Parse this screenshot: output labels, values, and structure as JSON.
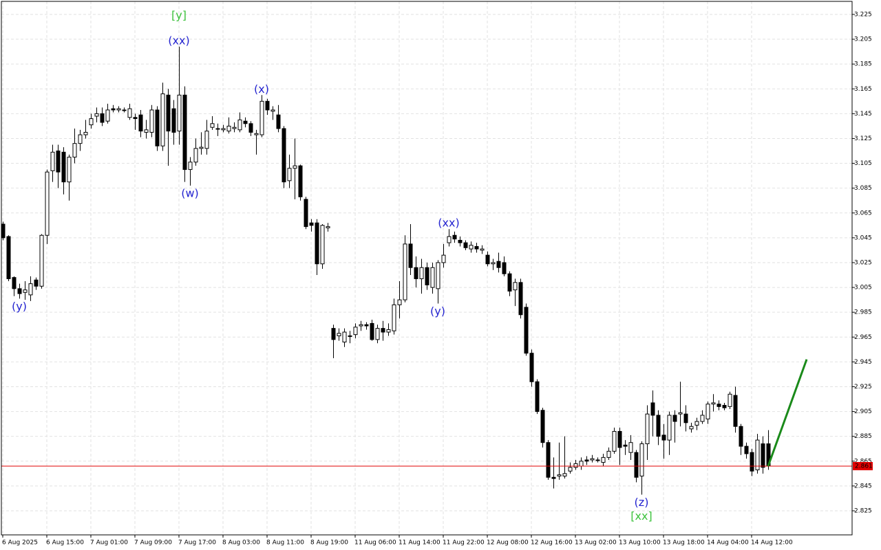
{
  "chart_data": {
    "type": "candlestick",
    "ylim": [
      2.8056,
      3.2355
    ],
    "yticks": [
      3.225,
      3.205,
      3.185,
      3.165,
      3.145,
      3.125,
      3.105,
      3.085,
      3.065,
      3.045,
      3.025,
      3.005,
      2.985,
      2.965,
      2.945,
      2.925,
      2.905,
      2.885,
      2.865,
      2.845,
      2.825
    ],
    "xlim": [
      -0.25,
      154.25
    ],
    "xticks": [
      {
        "value": 0,
        "label": "6 Aug 2025"
      },
      {
        "value": 8,
        "label": "6 Aug 15:00"
      },
      {
        "value": 16,
        "label": "7 Aug 01:00"
      },
      {
        "value": 24,
        "label": "7 Aug 09:00"
      },
      {
        "value": 32,
        "label": "7 Aug 17:00"
      },
      {
        "value": 40,
        "label": "8 Aug 03:00"
      },
      {
        "value": 48,
        "label": "8 Aug 11:00"
      },
      {
        "value": 56,
        "label": "8 Aug 19:00"
      },
      {
        "value": 64,
        "label": "11 Aug 06:00"
      },
      {
        "value": 72,
        "label": "11 Aug 14:00"
      },
      {
        "value": 80,
        "label": "11 Aug 22:00"
      },
      {
        "value": 88,
        "label": "12 Aug 08:00"
      },
      {
        "value": 96,
        "label": "12 Aug 16:00"
      },
      {
        "value": 104,
        "label": "13 Aug 02:00"
      },
      {
        "value": 112,
        "label": "13 Aug 10:00"
      },
      {
        "value": 120,
        "label": "13 Aug 18:00"
      },
      {
        "value": 128,
        "label": "14 Aug 04:00"
      },
      {
        "value": 136,
        "label": "14 Aug 12:00"
      }
    ],
    "grid": true,
    "bull_color": "#ffffff",
    "bear_color": "#000000",
    "open": [
      3.056,
      3.046,
      3.013,
      3.004,
      3.001,
      2.999,
      3.011,
      3.006,
      3.047,
      3.099,
      3.115,
      3.114,
      3.09,
      3.11,
      3.121,
      3.128,
      3.136,
      3.143,
      3.145,
      3.139,
      3.149,
      3.148,
      3.148,
      3.142,
      3.142,
      3.144,
      3.13,
      3.13,
      3.148,
      3.119,
      3.16,
      3.149,
      3.131,
      3.16,
      3.1,
      3.106,
      3.117,
      3.117,
      3.134,
      3.133,
      3.132,
      3.131,
      3.133,
      3.132,
      3.139,
      3.137,
      3.128,
      3.128,
      3.155,
      3.147,
      3.144,
      3.133,
      3.091,
      3.101,
      3.103,
      3.076,
      3.057,
      3.057,
      3.024,
      3.053,
      2.972,
      2.966,
      2.961,
      2.966,
      2.967,
      2.974,
      2.975,
      2.976,
      2.963,
      2.972,
      2.969,
      2.97,
      2.991,
      2.995,
      3.04,
      3.021,
      3.012,
      3.021,
      3.005,
      3.004,
      3.025,
      3.041,
      3.047,
      3.043,
      3.041,
      3.036,
      3.038,
      3.035,
      3.031,
      3.024,
      3.026,
      3.025,
      3.016,
      3.003,
      3.009,
      2.989,
      2.952,
      2.929,
      2.906,
      2.88,
      2.852,
      2.853,
      2.853,
      2.857,
      2.86,
      2.861,
      2.866,
      2.866,
      2.866,
      2.864,
      2.868,
      2.873,
      2.889,
      2.878,
      2.872,
      2.872,
      2.853,
      2.879,
      2.912,
      2.902,
      2.886,
      2.882,
      2.902,
      2.903,
      2.903,
      2.891,
      2.894,
      2.897,
      2.899,
      2.911,
      2.911,
      2.91,
      2.909,
      2.918,
      2.893,
      2.877,
      2.872,
      2.858,
      2.879,
      2.879
    ],
    "high": [
      3.058,
      3.047,
      3.014,
      3.008,
      3.01,
      3.014,
      3.013,
      3.048,
      3.1,
      3.12,
      3.12,
      3.118,
      3.112,
      3.133,
      3.132,
      3.14,
      3.145,
      3.15,
      3.15,
      3.153,
      3.152,
      3.151,
      3.15,
      3.153,
      3.145,
      3.148,
      3.14,
      3.152,
      3.151,
      3.17,
      3.165,
      3.156,
      3.199,
      3.167,
      3.11,
      3.125,
      3.13,
      3.14,
      3.143,
      3.137,
      3.136,
      3.142,
      3.138,
      3.146,
      3.142,
      3.139,
      3.132,
      3.16,
      3.157,
      3.151,
      3.152,
      3.135,
      3.112,
      3.125,
      3.104,
      3.078,
      3.06,
      3.06,
      3.056,
      3.057,
      2.975,
      2.972,
      2.972,
      2.97,
      2.976,
      2.978,
      2.977,
      2.979,
      2.975,
      2.978,
      2.976,
      2.996,
      3.01,
      3.047,
      3.056,
      3.03,
      3.028,
      3.025,
      3.025,
      3.027,
      3.04,
      3.052,
      3.05,
      3.046,
      3.043,
      3.042,
      3.041,
      3.039,
      3.034,
      3.028,
      3.033,
      3.03,
      3.018,
      3.012,
      3.012,
      2.992,
      2.955,
      2.931,
      2.908,
      2.882,
      2.868,
      2.88,
      2.885,
      2.864,
      2.866,
      2.868,
      2.869,
      2.87,
      2.868,
      2.871,
      2.876,
      2.892,
      2.892,
      2.882,
      2.886,
      2.874,
      2.881,
      2.91,
      2.922,
      2.906,
      2.895,
      2.905,
      2.906,
      2.929,
      2.91,
      2.896,
      2.9,
      2.906,
      2.913,
      2.919,
      2.914,
      2.912,
      2.921,
      2.925,
      2.895,
      2.88,
      2.875,
      2.887,
      2.885,
      2.89
    ],
    "low": [
      3.043,
      3.01,
      2.998,
      2.996,
      2.995,
      2.994,
      3.003,
      3.004,
      3.04,
      3.09,
      3.085,
      3.08,
      3.075,
      3.105,
      3.115,
      3.125,
      3.133,
      3.138,
      3.135,
      3.137,
      3.146,
      3.146,
      3.146,
      3.14,
      3.132,
      3.126,
      3.125,
      3.126,
      3.115,
      3.115,
      3.103,
      3.12,
      3.12,
      3.09,
      3.087,
      3.103,
      3.112,
      3.112,
      3.132,
      3.127,
      3.13,
      3.129,
      3.13,
      3.13,
      3.134,
      3.127,
      3.112,
      3.126,
      3.144,
      3.14,
      3.13,
      3.085,
      3.085,
      3.076,
      3.075,
      3.052,
      3.05,
      3.015,
      3.02,
      3.05,
      2.948,
      2.962,
      2.957,
      2.96,
      2.964,
      2.97,
      2.971,
      2.962,
      2.96,
      2.962,
      2.966,
      2.967,
      2.98,
      2.993,
      3.015,
      3.005,
      3.0,
      3.003,
      3.0,
      2.992,
      3.021,
      3.038,
      3.041,
      3.038,
      3.035,
      3.033,
      3.033,
      3.032,
      3.022,
      3.019,
      3.017,
      3.014,
      2.998,
      2.99,
      2.98,
      2.95,
      2.925,
      2.903,
      2.876,
      2.85,
      2.843,
      2.85,
      2.851,
      2.855,
      2.858,
      2.858,
      2.862,
      2.864,
      2.864,
      2.861,
      2.866,
      2.871,
      2.862,
      2.87,
      2.866,
      2.848,
      2.838,
      2.866,
      2.885,
      2.878,
      2.867,
      2.87,
      2.88,
      2.893,
      2.889,
      2.888,
      2.89,
      2.895,
      2.895,
      2.905,
      2.906,
      2.906,
      2.907,
      2.888,
      2.87,
      2.867,
      2.853,
      2.855,
      2.855,
      2.858
    ],
    "close": [
      3.045,
      3.012,
      3.004,
      3.0,
      3.003,
      3.008,
      3.006,
      3.047,
      3.098,
      3.114,
      3.098,
      3.09,
      3.11,
      3.121,
      3.128,
      3.13,
      3.141,
      3.145,
      3.138,
      3.148,
      3.148,
      3.149,
      3.148,
      3.149,
      3.141,
      3.131,
      3.132,
      3.148,
      3.119,
      3.161,
      3.131,
      3.13,
      3.16,
      3.1,
      3.106,
      3.117,
      3.118,
      3.131,
      3.137,
      3.133,
      3.133,
      3.135,
      3.134,
      3.14,
      3.137,
      3.13,
      3.129,
      3.155,
      3.148,
      3.148,
      3.133,
      3.09,
      3.101,
      3.103,
      3.078,
      3.054,
      3.055,
      3.024,
      3.055,
      3.054,
      2.963,
      2.968,
      2.969,
      2.966,
      2.973,
      2.975,
      2.974,
      2.963,
      2.972,
      2.969,
      2.971,
      2.991,
      2.995,
      3.04,
      3.021,
      3.012,
      3.021,
      3.007,
      3.021,
      3.025,
      3.031,
      3.046,
      3.044,
      3.041,
      3.037,
      3.039,
      3.036,
      3.036,
      3.024,
      3.025,
      3.021,
      3.016,
      3.002,
      3.009,
      2.983,
      2.952,
      2.929,
      2.905,
      2.88,
      2.852,
      2.851,
      2.854,
      2.855,
      2.86,
      2.863,
      2.865,
      2.865,
      2.867,
      2.866,
      2.868,
      2.873,
      2.889,
      2.876,
      2.877,
      2.88,
      2.852,
      2.879,
      2.903,
      2.902,
      2.885,
      2.882,
      2.902,
      2.897,
      2.904,
      2.896,
      2.893,
      2.897,
      2.902,
      2.911,
      2.912,
      2.909,
      2.908,
      2.919,
      2.893,
      2.877,
      2.871,
      2.857,
      2.882,
      2.86,
      2.861
    ],
    "last_price": 2.861,
    "last_price_color": "#e00000",
    "projection": {
      "to_index": 146,
      "to_value": 2.947,
      "color": "#1a8a1a"
    },
    "annotations": [
      {
        "index": 3,
        "side": "below",
        "labels": [
          {
            "text": "(y)",
            "color": "#2424d0"
          }
        ]
      },
      {
        "index": 32,
        "side": "above",
        "labels": [
          {
            "text": "(xx)",
            "color": "#2424d0"
          },
          {
            "text": "[y]",
            "color": "#3cc23c"
          }
        ]
      },
      {
        "index": 34,
        "side": "below",
        "labels": [
          {
            "text": "(w)",
            "color": "#2424d0"
          }
        ]
      },
      {
        "index": 47,
        "side": "above",
        "labels": [
          {
            "text": "(x)",
            "color": "#2424d0"
          }
        ]
      },
      {
        "index": 81,
        "side": "above",
        "labels": [
          {
            "text": "(xx)",
            "color": "#2424d0"
          }
        ]
      },
      {
        "index": 79,
        "side": "below",
        "labels": [
          {
            "text": "(y)",
            "color": "#2424d0"
          }
        ]
      },
      {
        "index": 116,
        "side": "below",
        "labels": [
          {
            "text": "(z)",
            "color": "#2424d0"
          },
          {
            "text": "[xx]",
            "color": "#3cc23c"
          }
        ]
      }
    ]
  }
}
